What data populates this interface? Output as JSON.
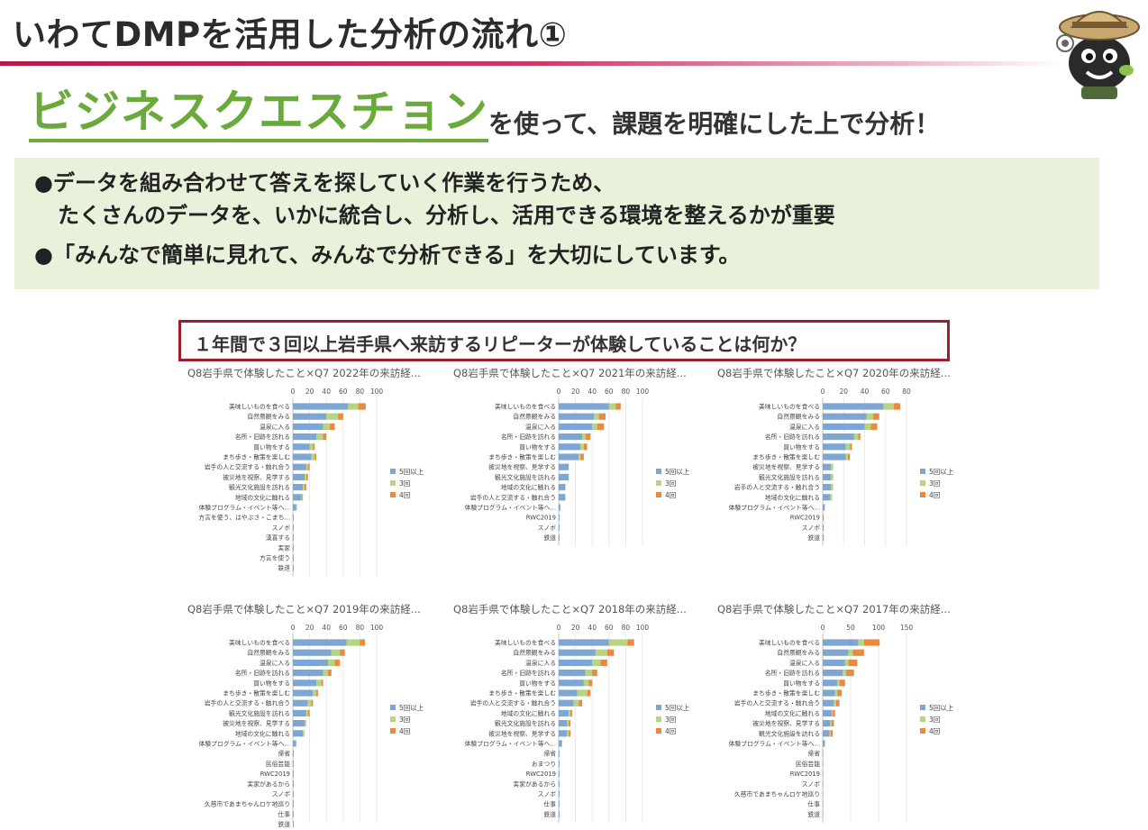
{
  "header": {
    "title": "いわてDMPを活用した分析の流れ①"
  },
  "headline": {
    "emphasis": "ビジネスクエスチョン",
    "rest": "を使って、課題を明確にした上で分析！"
  },
  "bullets": [
    {
      "mark": "●",
      "lines": [
        "データを組み合わせて答えを探していく作業を行うため、",
        "たくさんのデータを、いかに統合し、分析し、活用できる環境を整えるかが重要"
      ]
    },
    {
      "mark": "●",
      "lines": [
        "「みんなで簡単に見れて、みんなで分析できる」を大切にしています。"
      ]
    }
  ],
  "question": "１年間で３回以上岩手県へ来訪するリピーターが体験していることは何か？",
  "colors": {
    "s5": "#7ea6d3",
    "s3": "#b6d582",
    "s4": "#e98a3e",
    "accent": "#6aaa3a",
    "question_border": "#9f1d2c"
  },
  "chart_data": [
    {
      "type": "bar",
      "orientation": "horizontal",
      "stacked": true,
      "title": "Q8岩手県で体験したこと×Q7 2022年の来訪経...",
      "xlim": [
        0,
        100
      ],
      "ticks": [
        0,
        20,
        40,
        60,
        80,
        100
      ],
      "legend": "right",
      "categories": [
        "美味しいものを食べる",
        "自然景観をみる",
        "温泉に入る",
        "名所・旧跡を訪れる",
        "買い物をする",
        "まち歩き・散策を楽しむ",
        "岩手の人と交流する・触れ合う",
        "被災地を視察、見学する",
        "観光文化施設を訪れる",
        "地域の文化に触れる",
        "体験プログラム・イベント等へ...",
        "方言を使う、はやぶさ・こまち...",
        "スノボ",
        "漢喜する",
        "実家",
        "方言を使う",
        "鉄道"
      ],
      "series": [
        {
          "name": "5回以上",
          "values": [
            66,
            40,
            36,
            28,
            20,
            22,
            16,
            14,
            12,
            10,
            4,
            1,
            1,
            1,
            1,
            1,
            1
          ]
        },
        {
          "name": "3回",
          "values": [
            12,
            14,
            8,
            8,
            4,
            4,
            2,
            2,
            2,
            1,
            1,
            0,
            0,
            0,
            0,
            0,
            0
          ]
        },
        {
          "name": "4回",
          "values": [
            9,
            6,
            6,
            4,
            2,
            2,
            2,
            2,
            2,
            1,
            0,
            0,
            0,
            0,
            0,
            0,
            0
          ]
        }
      ]
    },
    {
      "type": "bar",
      "orientation": "horizontal",
      "stacked": true,
      "title": "Q8岩手県で体験したこと×Q7 2021年の来訪経...",
      "xlim": [
        0,
        100
      ],
      "ticks": [
        0,
        20,
        40,
        60,
        80,
        100
      ],
      "legend": "right",
      "categories": [
        "美味しいものを食べる",
        "自然景観をみる",
        "温泉に入る",
        "名所・旧跡を訪れる",
        "買い物をする",
        "まち歩き・散策を楽しむ",
        "被災地を視察、見学する",
        "観光文化施設を訪れる",
        "地域の文化に触れる",
        "岩手の人と交流する・触れ合う",
        "体験プログラム・イベント等へ...",
        "RWC2019",
        "スノボ",
        "鉄道"
      ],
      "series": [
        {
          "name": "5回以上",
          "values": [
            60,
            42,
            40,
            28,
            26,
            24,
            12,
            12,
            8,
            8,
            2,
            1,
            1,
            1
          ]
        },
        {
          "name": "3回",
          "values": [
            8,
            6,
            6,
            4,
            4,
            2,
            0,
            0,
            0,
            0,
            0,
            0,
            0,
            0
          ]
        },
        {
          "name": "4回",
          "values": [
            6,
            8,
            8,
            6,
            4,
            4,
            0,
            0,
            0,
            0,
            0,
            0,
            0,
            0
          ]
        }
      ]
    },
    {
      "type": "bar",
      "orientation": "horizontal",
      "stacked": true,
      "title": "Q8岩手県で体験したこと×Q7 2020年の来訪経...",
      "xlim": [
        0,
        80
      ],
      "ticks": [
        0,
        20,
        40,
        60,
        80
      ],
      "legend": "right",
      "categories": [
        "美味しいものを食べる",
        "自然景観をみる",
        "温泉に入る",
        "名所・旧跡を訪れる",
        "買い物をする",
        "まち歩き・散策を楽しむ",
        "被災地を視察、見学する",
        "観光文化施設を訪れる",
        "岩手の人と交流する・触れ合う",
        "地域の文化に触れる",
        "体験プログラム・イベント等へ...",
        "RWC2019",
        "スノボ",
        "鉄道"
      ],
      "series": [
        {
          "name": "5回以上",
          "values": [
            58,
            42,
            40,
            30,
            22,
            22,
            8,
            8,
            8,
            7,
            2,
            1,
            1,
            1
          ]
        },
        {
          "name": "3回",
          "values": [
            10,
            6,
            6,
            4,
            4,
            2,
            2,
            2,
            2,
            2,
            0,
            0,
            0,
            0
          ]
        },
        {
          "name": "4回",
          "values": [
            6,
            6,
            6,
            2,
            2,
            2,
            0,
            0,
            0,
            0,
            0,
            0,
            0,
            0
          ]
        }
      ]
    },
    {
      "type": "bar",
      "orientation": "horizontal",
      "stacked": true,
      "title": "Q8岩手県で体験したこと×Q7 2019年の来訪経...",
      "xlim": [
        0,
        100
      ],
      "ticks": [
        0,
        20,
        40,
        60,
        80,
        100
      ],
      "legend": "right",
      "categories": [
        "美味しいものを食べる",
        "自然景観をみる",
        "温泉に入る",
        "名所・旧跡を訪れる",
        "買い物をする",
        "まち歩き・散策を楽しむ",
        "岩手の人と交流する・触れ合う",
        "観光文化施設を訪れる",
        "被災地を視察、見学する",
        "地域の文化に触れる",
        "体験プログラム・イベント等へ...",
        "帰省",
        "民俗芸能",
        "RWC2019",
        "実家があるから",
        "スノボ",
        "久慈市であまちゃんロケ地巡り",
        "仕事",
        "鉄道"
      ],
      "series": [
        {
          "name": "5回以上",
          "values": [
            64,
            46,
            42,
            36,
            28,
            24,
            18,
            16,
            14,
            12,
            4,
            1,
            1,
            1,
            1,
            1,
            1,
            1,
            1
          ]
        },
        {
          "name": "3回",
          "values": [
            16,
            10,
            8,
            6,
            6,
            4,
            4,
            2,
            2,
            2,
            0,
            0,
            0,
            0,
            0,
            0,
            0,
            0,
            0
          ]
        },
        {
          "name": "4回",
          "values": [
            6,
            6,
            6,
            4,
            2,
            2,
            2,
            2,
            0,
            0,
            0,
            0,
            0,
            0,
            0,
            0,
            0,
            0,
            0
          ]
        }
      ]
    },
    {
      "type": "bar",
      "orientation": "horizontal",
      "stacked": true,
      "title": "Q8岩手県で体験したこと×Q7 2018年の来訪経...",
      "xlim": [
        0,
        100
      ],
      "ticks": [
        0,
        20,
        40,
        60,
        80,
        100
      ],
      "legend": "right",
      "categories": [
        "美味しいものを食べる",
        "自然景観をみる",
        "温泉に入る",
        "名所・旧跡を訪れる",
        "買い物をする",
        "まち歩き・散策を楽しむ",
        "岩手の人と交流する・触れ合う",
        "地域の文化に触れる",
        "観光文化施設を訪れる",
        "被災地を視察、見学する",
        "体験プログラム・イベント等へ...",
        "帰省",
        "おまつり",
        "RWC2019",
        "実家があるから",
        "スノボ",
        "仕事",
        "鉄道"
      ],
      "series": [
        {
          "name": "5回以上",
          "values": [
            60,
            44,
            40,
            32,
            30,
            22,
            18,
            12,
            10,
            10,
            4,
            1,
            1,
            1,
            1,
            1,
            1,
            1
          ]
        },
        {
          "name": "3回",
          "values": [
            22,
            14,
            10,
            8,
            6,
            12,
            6,
            2,
            2,
            2,
            0,
            0,
            0,
            0,
            0,
            0,
            0,
            0
          ]
        },
        {
          "name": "4回",
          "values": [
            8,
            8,
            8,
            6,
            4,
            4,
            4,
            2,
            2,
            2,
            0,
            0,
            0,
            0,
            0,
            0,
            0,
            0
          ]
        }
      ]
    },
    {
      "type": "bar",
      "orientation": "horizontal",
      "stacked": true,
      "title": "Q8岩手県で体験したこと×Q7 2017年の来訪経...",
      "xlim": [
        0,
        150
      ],
      "ticks": [
        0,
        50,
        100,
        150
      ],
      "legend": "right",
      "categories": [
        "美味しいものを食べる",
        "自然景観をみる",
        "温泉に入る",
        "名所・旧跡を訪れる",
        "買い物をする",
        "まち歩き・散策を楽しむ",
        "岩手の人と交流する・触れ合う",
        "地域の文化に触れる",
        "被災地を視察、見学する",
        "観光文化施設を訪れる",
        "体験プログラム・イベント等へ...",
        "帰省",
        "民俗芸能",
        "RWC2019",
        "スノボ",
        "久慈市であまちゃんロケ地巡り",
        "仕事",
        "鉄道"
      ],
      "series": [
        {
          "name": "5回以上",
          "values": [
            64,
            46,
            40,
            36,
            26,
            22,
            20,
            16,
            14,
            12,
            4,
            1,
            1,
            1,
            1,
            1,
            1,
            1
          ]
        },
        {
          "name": "3回",
          "values": [
            10,
            8,
            6,
            6,
            4,
            4,
            4,
            2,
            2,
            2,
            0,
            0,
            0,
            0,
            0,
            0,
            0,
            0
          ]
        },
        {
          "name": "4回",
          "values": [
            28,
            20,
            16,
            14,
            10,
            8,
            6,
            4,
            4,
            4,
            0,
            0,
            0,
            0,
            0,
            0,
            0,
            0
          ]
        }
      ]
    }
  ]
}
